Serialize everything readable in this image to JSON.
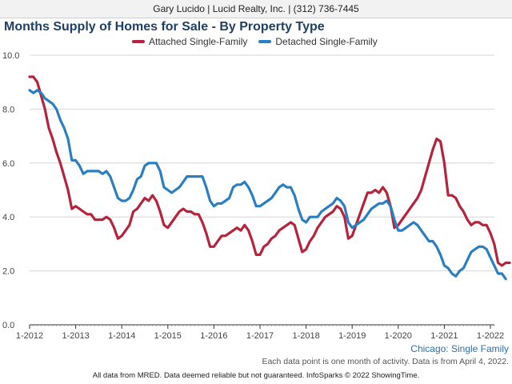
{
  "header": {
    "agent_line": "Gary Lucido | Lucid Realty, Inc. | (312) 736-7445"
  },
  "chart_data": {
    "type": "line",
    "title": "Months Supply of Homes for Sale - By Property Type",
    "xlabel": "",
    "ylabel": "",
    "ylim": [
      0,
      10
    ],
    "yticks": [
      "0.0",
      "2.0",
      "4.0",
      "6.0",
      "8.0",
      "10.0"
    ],
    "xticks": [
      "1-2012",
      "1-2013",
      "1-2014",
      "1-2015",
      "1-2016",
      "1-2017",
      "1-2018",
      "1-2019",
      "1-2020",
      "1-2021",
      "1-2022"
    ],
    "x_start": "1-2012",
    "grid": true,
    "legend_position": "top",
    "series": [
      {
        "name": "Attached Single-Family",
        "color": "#b5243c",
        "values": [
          9.2,
          9.2,
          9.0,
          8.5,
          8.0,
          7.3,
          6.9,
          6.4,
          6.0,
          5.5,
          5.0,
          4.3,
          4.4,
          4.3,
          4.2,
          4.1,
          4.1,
          3.9,
          3.9,
          3.9,
          4.0,
          3.9,
          3.6,
          3.2,
          3.3,
          3.5,
          3.7,
          4.2,
          4.3,
          4.5,
          4.7,
          4.6,
          4.8,
          4.6,
          4.2,
          3.7,
          3.6,
          3.8,
          4.0,
          4.2,
          4.3,
          4.2,
          4.2,
          4.1,
          4.1,
          3.8,
          3.4,
          2.9,
          2.9,
          3.1,
          3.3,
          3.3,
          3.4,
          3.5,
          3.6,
          3.5,
          3.7,
          3.5,
          3.1,
          2.6,
          2.6,
          2.9,
          3.0,
          3.2,
          3.3,
          3.5,
          3.6,
          3.7,
          3.8,
          3.7,
          3.2,
          2.7,
          2.8,
          3.1,
          3.3,
          3.6,
          3.8,
          4.0,
          4.1,
          4.2,
          4.4,
          4.3,
          4.0,
          3.2,
          3.3,
          3.7,
          4.1,
          4.5,
          4.9,
          4.9,
          5.0,
          4.9,
          5.1,
          4.9,
          4.4,
          3.6,
          3.7,
          3.9,
          4.1,
          4.3,
          4.5,
          4.7,
          5.0,
          5.5,
          6.0,
          6.5,
          6.9,
          6.8,
          6.0,
          4.8,
          4.8,
          4.7,
          4.4,
          4.2,
          3.9,
          3.7,
          3.8,
          3.8,
          3.7,
          3.7,
          3.4,
          3.0,
          2.3,
          2.2,
          2.3,
          2.3
        ]
      },
      {
        "name": "Detached Single-Family",
        "color": "#2a7fc2",
        "values": [
          8.7,
          8.6,
          8.7,
          8.6,
          8.4,
          8.3,
          8.2,
          8.0,
          7.6,
          7.3,
          6.9,
          6.1,
          6.1,
          5.9,
          5.6,
          5.7,
          5.7,
          5.7,
          5.7,
          5.6,
          5.7,
          5.5,
          5.1,
          4.7,
          4.6,
          4.6,
          4.7,
          5.0,
          5.4,
          5.5,
          5.9,
          6.0,
          6.0,
          6.0,
          5.7,
          5.1,
          5.0,
          4.9,
          5.0,
          5.1,
          5.3,
          5.5,
          5.5,
          5.5,
          5.5,
          5.5,
          5.1,
          4.6,
          4.4,
          4.5,
          4.5,
          4.6,
          4.7,
          5.1,
          5.2,
          5.2,
          5.3,
          5.1,
          4.8,
          4.4,
          4.4,
          4.5,
          4.6,
          4.7,
          4.9,
          5.1,
          5.2,
          5.1,
          5.1,
          4.8,
          4.3,
          3.9,
          3.8,
          4.0,
          4.0,
          4.0,
          4.2,
          4.3,
          4.4,
          4.5,
          4.7,
          4.6,
          4.4,
          3.8,
          3.6,
          3.7,
          3.8,
          3.9,
          4.1,
          4.3,
          4.4,
          4.5,
          4.5,
          4.6,
          4.4,
          3.9,
          3.5,
          3.5,
          3.6,
          3.7,
          3.8,
          3.7,
          3.5,
          3.3,
          3.1,
          3.1,
          2.9,
          2.6,
          2.2,
          2.1,
          1.9,
          1.8,
          2.0,
          2.1,
          2.4,
          2.7,
          2.8,
          2.9,
          2.9,
          2.8,
          2.5,
          2.2,
          1.9,
          1.9,
          1.7
        ]
      }
    ]
  },
  "region_label": "Chicago: Single Family",
  "footnote": "Each data point is one month of activity. Data is from April 4, 2022.",
  "disclaimer": "All data from MRED. Data deemed reliable but not guaranteed. InfoSparks © 2022 ShowingTime."
}
